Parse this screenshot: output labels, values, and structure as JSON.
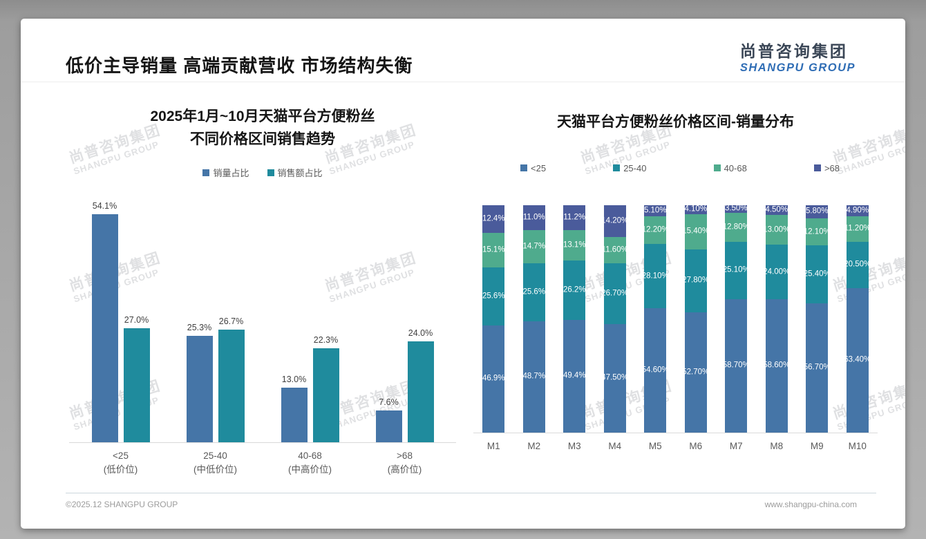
{
  "page": {
    "title": "低价主导销量 高端贡献营收 市场结构失衡",
    "logo": {
      "cn": "尚普咨询集团",
      "en": "SHANGPU GROUP"
    },
    "footer": {
      "left": "©2025.12 SHANGPU GROUP",
      "right": "www.shangpu-china.com"
    }
  },
  "watermark": {
    "line1": "尚普咨询集团",
    "line2": "SHANGPU GROUP"
  },
  "colors": {
    "steel_blue": "#4575a7",
    "teal": "#1f8b9d",
    "green": "#4fab8d",
    "indigo": "#4a5b9b"
  },
  "chart_data": [
    {
      "type": "bar",
      "title_lines": [
        "2025年1月~10月天猫平台方便粉丝",
        "不同价格区间销售趋势"
      ],
      "categories": [
        "<25",
        "25-40",
        "40-68",
        ">68"
      ],
      "category_subs": [
        "(低价位)",
        "(中低价位)",
        "(中高价位)",
        "(高价位)"
      ],
      "ylim": [
        0,
        60
      ],
      "grid": false,
      "legend_position": "top",
      "series": [
        {
          "name": "销量占比",
          "color": "#4575a7",
          "values": [
            54.1,
            25.3,
            13.0,
            7.6
          ],
          "labels": [
            "54.1%",
            "25.3%",
            "13.0%",
            "7.6%"
          ]
        },
        {
          "name": "销售额占比",
          "color": "#1f8b9d",
          "values": [
            27.0,
            26.7,
            22.3,
            24.0
          ],
          "labels": [
            "27.0%",
            "26.7%",
            "22.3%",
            "24.0%"
          ]
        }
      ]
    },
    {
      "type": "stacked-bar",
      "title": "天猫平台方便粉丝价格区间-销量分布",
      "categories": [
        "M1",
        "M2",
        "M3",
        "M4",
        "M5",
        "M6",
        "M7",
        "M8",
        "M9",
        "M10"
      ],
      "ylim": [
        0,
        100
      ],
      "grid": false,
      "legend_position": "top",
      "series": [
        {
          "name": "<25",
          "color": "#4575a7",
          "values": [
            46.9,
            48.7,
            49.4,
            47.5,
            54.6,
            52.7,
            58.7,
            58.6,
            56.7,
            63.4
          ],
          "labels": [
            "46.9%",
            "48.7%",
            "49.4%",
            "47.50%",
            "54.60%",
            "52.70%",
            "58.70%",
            "58.60%",
            "56.70%",
            "63.40%"
          ]
        },
        {
          "name": "25-40",
          "color": "#1f8b9d",
          "values": [
            25.6,
            25.6,
            26.2,
            26.7,
            28.1,
            27.8,
            25.1,
            24.0,
            25.4,
            20.5
          ],
          "labels": [
            "25.6%",
            "25.6%",
            "26.2%",
            "26.70%",
            "28.10%",
            "27.80%",
            "25.10%",
            "24.00%",
            "25.40%",
            "20.50%"
          ]
        },
        {
          "name": "40-68",
          "color": "#4fab8d",
          "values": [
            15.1,
            14.7,
            13.1,
            11.6,
            12.2,
            15.4,
            12.8,
            13.0,
            12.1,
            11.2
          ],
          "labels": [
            "15.1%",
            "14.7%",
            "13.1%",
            "11.60%",
            "12.20%",
            "15.40%",
            "12.80%",
            "13.00%",
            "12.10%",
            "11.20%"
          ]
        },
        {
          "name": ">68",
          "color": "#4a5b9b",
          "values": [
            12.4,
            11.0,
            11.2,
            14.2,
            5.1,
            4.1,
            3.5,
            4.5,
            5.8,
            4.9
          ],
          "labels": [
            "12.4%",
            "11.0%",
            "11.2%",
            "14.20%",
            "5.10%",
            "4.10%",
            "3.50%",
            "4.50%",
            "5.80%",
            "4.90%"
          ]
        }
      ]
    }
  ]
}
